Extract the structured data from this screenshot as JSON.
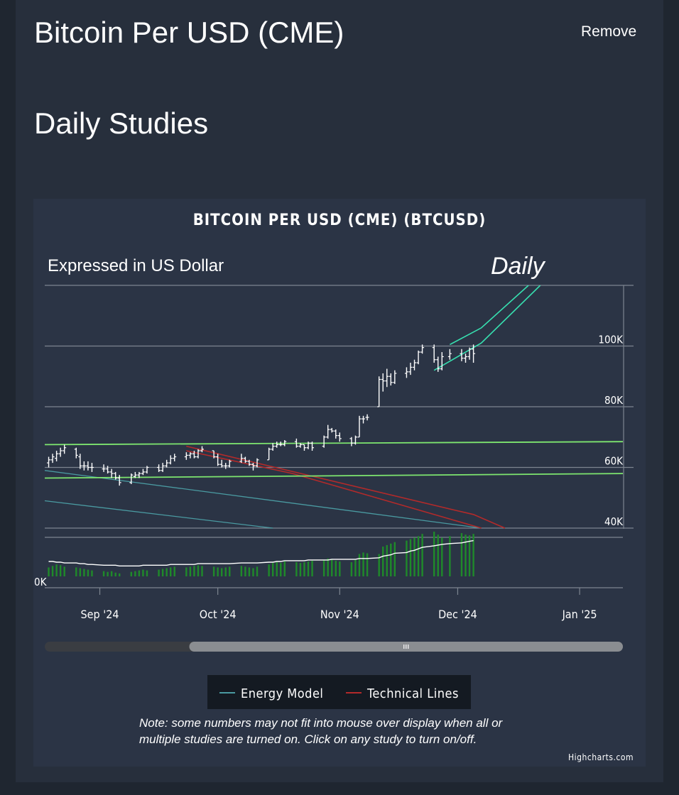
{
  "page": {
    "title": "Bitcoin Per USD (CME)",
    "remove_label": "Remove",
    "section_title": "Daily Studies"
  },
  "chart_data": {
    "type": "line",
    "title": "BITCOIN PER USD (CME) (BTCUSD)",
    "subtitle": "Expressed in US Dollar",
    "annotation": "Daily",
    "x_tick_labels": [
      "Sep '24",
      "Oct '24",
      "Nov '24",
      "Dec '24",
      "Jan '25"
    ],
    "x_ticks": [
      "2024-09-01",
      "2024-10-01",
      "2024-11-01",
      "2024-12-01",
      "2025-01-01"
    ],
    "xlim": [
      "2024-08-18",
      "2025-01-12"
    ],
    "ylim": [
      40000,
      120000
    ],
    "y_tick_labels": [
      "40K",
      "60K",
      "80K",
      "100K"
    ],
    "y_ticks": [
      40000,
      60000,
      80000,
      100000
    ],
    "lower_axis_label": "0K",
    "price_bars": [
      {
        "d": "2024-08-19",
        "o": 61500,
        "h": 63500,
        "l": 60000,
        "c": 62500
      },
      {
        "d": "2024-08-20",
        "o": 62500,
        "h": 64500,
        "l": 61500,
        "c": 63500
      },
      {
        "d": "2024-08-21",
        "o": 63000,
        "h": 65500,
        "l": 62000,
        "c": 64500
      },
      {
        "d": "2024-08-22",
        "o": 64500,
        "h": 66500,
        "l": 63500,
        "c": 65500
      },
      {
        "d": "2024-08-23",
        "o": 65500,
        "h": 67500,
        "l": 64500,
        "c": 66500
      },
      {
        "d": "2024-08-26",
        "o": 66000,
        "h": 66500,
        "l": 63000,
        "c": 64000
      },
      {
        "d": "2024-08-27",
        "o": 63500,
        "h": 64500,
        "l": 59500,
        "c": 60500
      },
      {
        "d": "2024-08-28",
        "o": 60500,
        "h": 62000,
        "l": 59000,
        "c": 60500
      },
      {
        "d": "2024-08-29",
        "o": 60500,
        "h": 62000,
        "l": 59000,
        "c": 60000
      },
      {
        "d": "2024-08-30",
        "o": 60000,
        "h": 61500,
        "l": 58500,
        "c": 60000
      },
      {
        "d": "2024-09-02",
        "o": 59500,
        "h": 61000,
        "l": 58500,
        "c": 59500
      },
      {
        "d": "2024-09-03",
        "o": 59500,
        "h": 60500,
        "l": 58000,
        "c": 58500
      },
      {
        "d": "2024-09-04",
        "o": 58500,
        "h": 59500,
        "l": 56500,
        "c": 58000
      },
      {
        "d": "2024-09-05",
        "o": 58000,
        "h": 58500,
        "l": 56000,
        "c": 56500
      },
      {
        "d": "2024-09-06",
        "o": 56500,
        "h": 57500,
        "l": 54000,
        "c": 55000
      },
      {
        "d": "2024-09-09",
        "o": 55000,
        "h": 58000,
        "l": 54500,
        "c": 57500
      },
      {
        "d": "2024-09-10",
        "o": 57000,
        "h": 58500,
        "l": 56500,
        "c": 57500
      },
      {
        "d": "2024-09-11",
        "o": 57500,
        "h": 58500,
        "l": 56500,
        "c": 58000
      },
      {
        "d": "2024-09-12",
        "o": 58000,
        "h": 59500,
        "l": 57500,
        "c": 58500
      },
      {
        "d": "2024-09-13",
        "o": 58500,
        "h": 60500,
        "l": 58000,
        "c": 60000
      },
      {
        "d": "2024-09-16",
        "o": 60000,
        "h": 61000,
        "l": 58500,
        "c": 59000
      },
      {
        "d": "2024-09-17",
        "o": 59000,
        "h": 61500,
        "l": 58500,
        "c": 60500
      },
      {
        "d": "2024-09-18",
        "o": 60500,
        "h": 62500,
        "l": 60000,
        "c": 61500
      },
      {
        "d": "2024-09-19",
        "o": 61500,
        "h": 64000,
        "l": 61000,
        "c": 63000
      },
      {
        "d": "2024-09-20",
        "o": 63000,
        "h": 64500,
        "l": 62000,
        "c": 63500
      },
      {
        "d": "2024-09-23",
        "o": 63500,
        "h": 65000,
        "l": 62500,
        "c": 64000
      },
      {
        "d": "2024-09-24",
        "o": 64000,
        "h": 65000,
        "l": 63000,
        "c": 64500
      },
      {
        "d": "2024-09-25",
        "o": 64500,
        "h": 65500,
        "l": 63000,
        "c": 63500
      },
      {
        "d": "2024-09-26",
        "o": 63500,
        "h": 66000,
        "l": 63000,
        "c": 65500
      },
      {
        "d": "2024-09-27",
        "o": 65500,
        "h": 67000,
        "l": 65000,
        "c": 66000
      },
      {
        "d": "2024-09-30",
        "o": 65500,
        "h": 65500,
        "l": 63000,
        "c": 63500
      },
      {
        "d": "2024-10-01",
        "o": 63500,
        "h": 64500,
        "l": 60500,
        "c": 61000
      },
      {
        "d": "2024-10-02",
        "o": 61000,
        "h": 62500,
        "l": 60000,
        "c": 60500
      },
      {
        "d": "2024-10-03",
        "o": 60500,
        "h": 61500,
        "l": 59500,
        "c": 60500
      },
      {
        "d": "2024-10-04",
        "o": 60500,
        "h": 62500,
        "l": 60000,
        "c": 62000
      },
      {
        "d": "2024-10-07",
        "o": 62000,
        "h": 64500,
        "l": 61500,
        "c": 63000
      },
      {
        "d": "2024-10-08",
        "o": 63000,
        "h": 63500,
        "l": 61500,
        "c": 62000
      },
      {
        "d": "2024-10-09",
        "o": 62000,
        "h": 62500,
        "l": 60500,
        "c": 61000
      },
      {
        "d": "2024-10-10",
        "o": 61000,
        "h": 61500,
        "l": 59000,
        "c": 60500
      },
      {
        "d": "2024-10-11",
        "o": 60500,
        "h": 63000,
        "l": 60000,
        "c": 62500
      },
      {
        "d": "2024-10-14",
        "o": 62500,
        "h": 66500,
        "l": 62500,
        "c": 66000
      },
      {
        "d": "2024-10-15",
        "o": 66000,
        "h": 68000,
        "l": 65500,
        "c": 67000
      },
      {
        "d": "2024-10-16",
        "o": 67000,
        "h": 68500,
        "l": 66500,
        "c": 67500
      },
      {
        "d": "2024-10-17",
        "o": 67500,
        "h": 68500,
        "l": 67000,
        "c": 67500
      },
      {
        "d": "2024-10-18",
        "o": 67500,
        "h": 69000,
        "l": 67000,
        "c": 68500
      },
      {
        "d": "2024-10-21",
        "o": 68500,
        "h": 69500,
        "l": 66500,
        "c": 67000
      },
      {
        "d": "2024-10-22",
        "o": 67000,
        "h": 68000,
        "l": 66500,
        "c": 67500
      },
      {
        "d": "2024-10-23",
        "o": 67500,
        "h": 67500,
        "l": 65500,
        "c": 66500
      },
      {
        "d": "2024-10-24",
        "o": 66500,
        "h": 68500,
        "l": 66000,
        "c": 68000
      },
      {
        "d": "2024-10-25",
        "o": 68000,
        "h": 68500,
        "l": 65500,
        "c": 66500
      },
      {
        "d": "2024-10-28",
        "o": 67000,
        "h": 70500,
        "l": 66500,
        "c": 70000
      },
      {
        "d": "2024-10-29",
        "o": 70000,
        "h": 74000,
        "l": 69500,
        "c": 72500
      },
      {
        "d": "2024-10-30",
        "o": 72500,
        "h": 73000,
        "l": 71500,
        "c": 72000
      },
      {
        "d": "2024-10-31",
        "o": 72000,
        "h": 72500,
        "l": 69500,
        "c": 70500
      },
      {
        "d": "2024-11-01",
        "o": 70500,
        "h": 71500,
        "l": 68500,
        "c": 69500
      },
      {
        "d": "2024-11-04",
        "o": 69500,
        "h": 70000,
        "l": 67000,
        "c": 68000
      },
      {
        "d": "2024-11-05",
        "o": 68000,
        "h": 70500,
        "l": 67500,
        "c": 70000
      },
      {
        "d": "2024-11-06",
        "o": 70000,
        "h": 77000,
        "l": 70000,
        "c": 76000
      },
      {
        "d": "2024-11-07",
        "o": 76000,
        "h": 77000,
        "l": 74500,
        "c": 76000
      },
      {
        "d": "2024-11-08",
        "o": 76500,
        "h": 77500,
        "l": 75500,
        "c": 76500
      },
      {
        "d": "2024-11-11",
        "o": 80000,
        "h": 90000,
        "l": 80000,
        "c": 89000
      },
      {
        "d": "2024-11-12",
        "o": 89000,
        "h": 91000,
        "l": 85000,
        "c": 88500
      },
      {
        "d": "2024-11-13",
        "o": 88500,
        "h": 92500,
        "l": 86500,
        "c": 90000
      },
      {
        "d": "2024-11-14",
        "o": 90000,
        "h": 91000,
        "l": 87000,
        "c": 88000
      },
      {
        "d": "2024-11-15",
        "o": 88000,
        "h": 92000,
        "l": 87500,
        "c": 91000
      },
      {
        "d": "2024-11-18",
        "o": 91000,
        "h": 93000,
        "l": 89500,
        "c": 91500
      },
      {
        "d": "2024-11-19",
        "o": 91500,
        "h": 94500,
        "l": 90500,
        "c": 93000
      },
      {
        "d": "2024-11-20",
        "o": 93000,
        "h": 95500,
        "l": 92000,
        "c": 94500
      },
      {
        "d": "2024-11-21",
        "o": 94500,
        "h": 98500,
        "l": 94000,
        "c": 98000
      },
      {
        "d": "2024-11-22",
        "o": 98000,
        "h": 100500,
        "l": 97500,
        "c": 99500
      },
      {
        "d": "2024-11-25",
        "o": 99500,
        "h": 100500,
        "l": 94500,
        "c": 95500
      },
      {
        "d": "2024-11-26",
        "o": 95500,
        "h": 96500,
        "l": 91500,
        "c": 92500
      },
      {
        "d": "2024-11-27",
        "o": 92500,
        "h": 98000,
        "l": 92000,
        "c": 96500
      },
      {
        "d": "2024-11-29",
        "o": 96500,
        "h": 99000,
        "l": 95500,
        "c": 97500
      },
      {
        "d": "2024-12-02",
        "o": 97500,
        "h": 99000,
        "l": 95000,
        "c": 96000
      },
      {
        "d": "2024-12-03",
        "o": 96000,
        "h": 97500,
        "l": 94500,
        "c": 96500
      },
      {
        "d": "2024-12-04",
        "o": 96500,
        "h": 99500,
        "l": 95500,
        "c": 99000
      },
      {
        "d": "2024-12-05",
        "o": 99000,
        "h": 100500,
        "l": 94500,
        "c": 97500
      }
    ],
    "series": [
      {
        "name": "Energy Model",
        "color": "#4a9aa1",
        "lines": [
          [
            {
              "d": "2024-08-18",
              "y": 59000
            },
            {
              "d": "2024-12-07",
              "y": 40000
            }
          ],
          [
            {
              "d": "2024-08-18",
              "y": 49000
            },
            {
              "d": "2024-10-15",
              "y": 40000
            }
          ]
        ]
      },
      {
        "name": "Technical Lines",
        "color": "#b32a2a",
        "lines": [
          [
            {
              "d": "2024-09-23",
              "y": 67000
            },
            {
              "d": "2024-11-30",
              "y": 46000
            },
            {
              "d": "2024-12-05",
              "y": 44500
            },
            {
              "d": "2024-12-13",
              "y": 40000
            }
          ],
          [
            {
              "d": "2024-09-23",
              "y": 65500
            },
            {
              "d": "2024-10-20",
              "y": 58000
            },
            {
              "d": "2024-12-07",
              "y": 40000
            }
          ]
        ]
      }
    ],
    "support_lines": {
      "color": "#7ee66f",
      "lines": [
        [
          {
            "d": "2024-08-18",
            "y": 67500
          },
          {
            "d": "2025-01-12",
            "y": 68500
          }
        ],
        [
          {
            "d": "2024-08-18",
            "y": 56500
          },
          {
            "d": "2025-01-12",
            "y": 58000
          }
        ]
      ]
    },
    "channel_lines": {
      "color": "#37e0b0",
      "lines": [
        [
          {
            "d": "2024-11-29",
            "y": 100500
          },
          {
            "d": "2024-12-07",
            "y": 106000
          },
          {
            "d": "2024-12-19",
            "y": 120000
          }
        ],
        [
          {
            "d": "2024-11-25",
            "y": 92000
          },
          {
            "d": "2024-12-07",
            "y": 101000
          },
          {
            "d": "2024-12-22",
            "y": 120000
          }
        ]
      ]
    },
    "oscillator": {
      "ylim": [
        0,
        100
      ],
      "bar_color": "#1f8a2a",
      "line_color": "#ffffff",
      "values": [
        12,
        14,
        16,
        15,
        13,
        12,
        11,
        10,
        9,
        8,
        7,
        6,
        7,
        5,
        4,
        6,
        7,
        8,
        9,
        8,
        9,
        10,
        11,
        12,
        13,
        12,
        13,
        14,
        15,
        14,
        13,
        12,
        11,
        12,
        13,
        14,
        13,
        12,
        11,
        13,
        16,
        18,
        19,
        18,
        20,
        19,
        18,
        19,
        20,
        21,
        22,
        24,
        23,
        21,
        20,
        19,
        22,
        30,
        32,
        31,
        30,
        40,
        42,
        44,
        46,
        48,
        50,
        52,
        54,
        57,
        60,
        56,
        52,
        54,
        58,
        56,
        55,
        57
      ],
      "line": [
        20,
        20,
        19,
        19,
        18,
        18,
        17,
        17,
        16,
        16,
        15,
        15,
        15,
        15,
        14,
        14,
        14,
        14,
        15,
        15,
        15,
        15,
        15,
        16,
        16,
        16,
        16,
        16,
        17,
        17,
        17,
        17,
        17,
        17,
        17,
        18,
        18,
        18,
        18,
        18,
        19,
        19,
        20,
        20,
        21,
        21,
        21,
        21,
        22,
        22,
        22,
        22,
        23,
        23,
        23,
        23,
        23,
        24,
        24,
        24,
        25,
        27,
        28,
        29,
        31,
        32,
        34,
        35,
        37,
        39,
        41,
        42,
        43,
        44,
        45,
        46,
        47,
        48
      ]
    },
    "scrollbar": {
      "range_start": 0.25,
      "range_end": 1.0
    },
    "legend": {
      "position": "bottom-center"
    },
    "footnote": "Note: some numbers may not fit into mouse over display when all or multiple studies are turned on. Click on any study to turn on/off.",
    "credits": "Highcharts.com"
  }
}
